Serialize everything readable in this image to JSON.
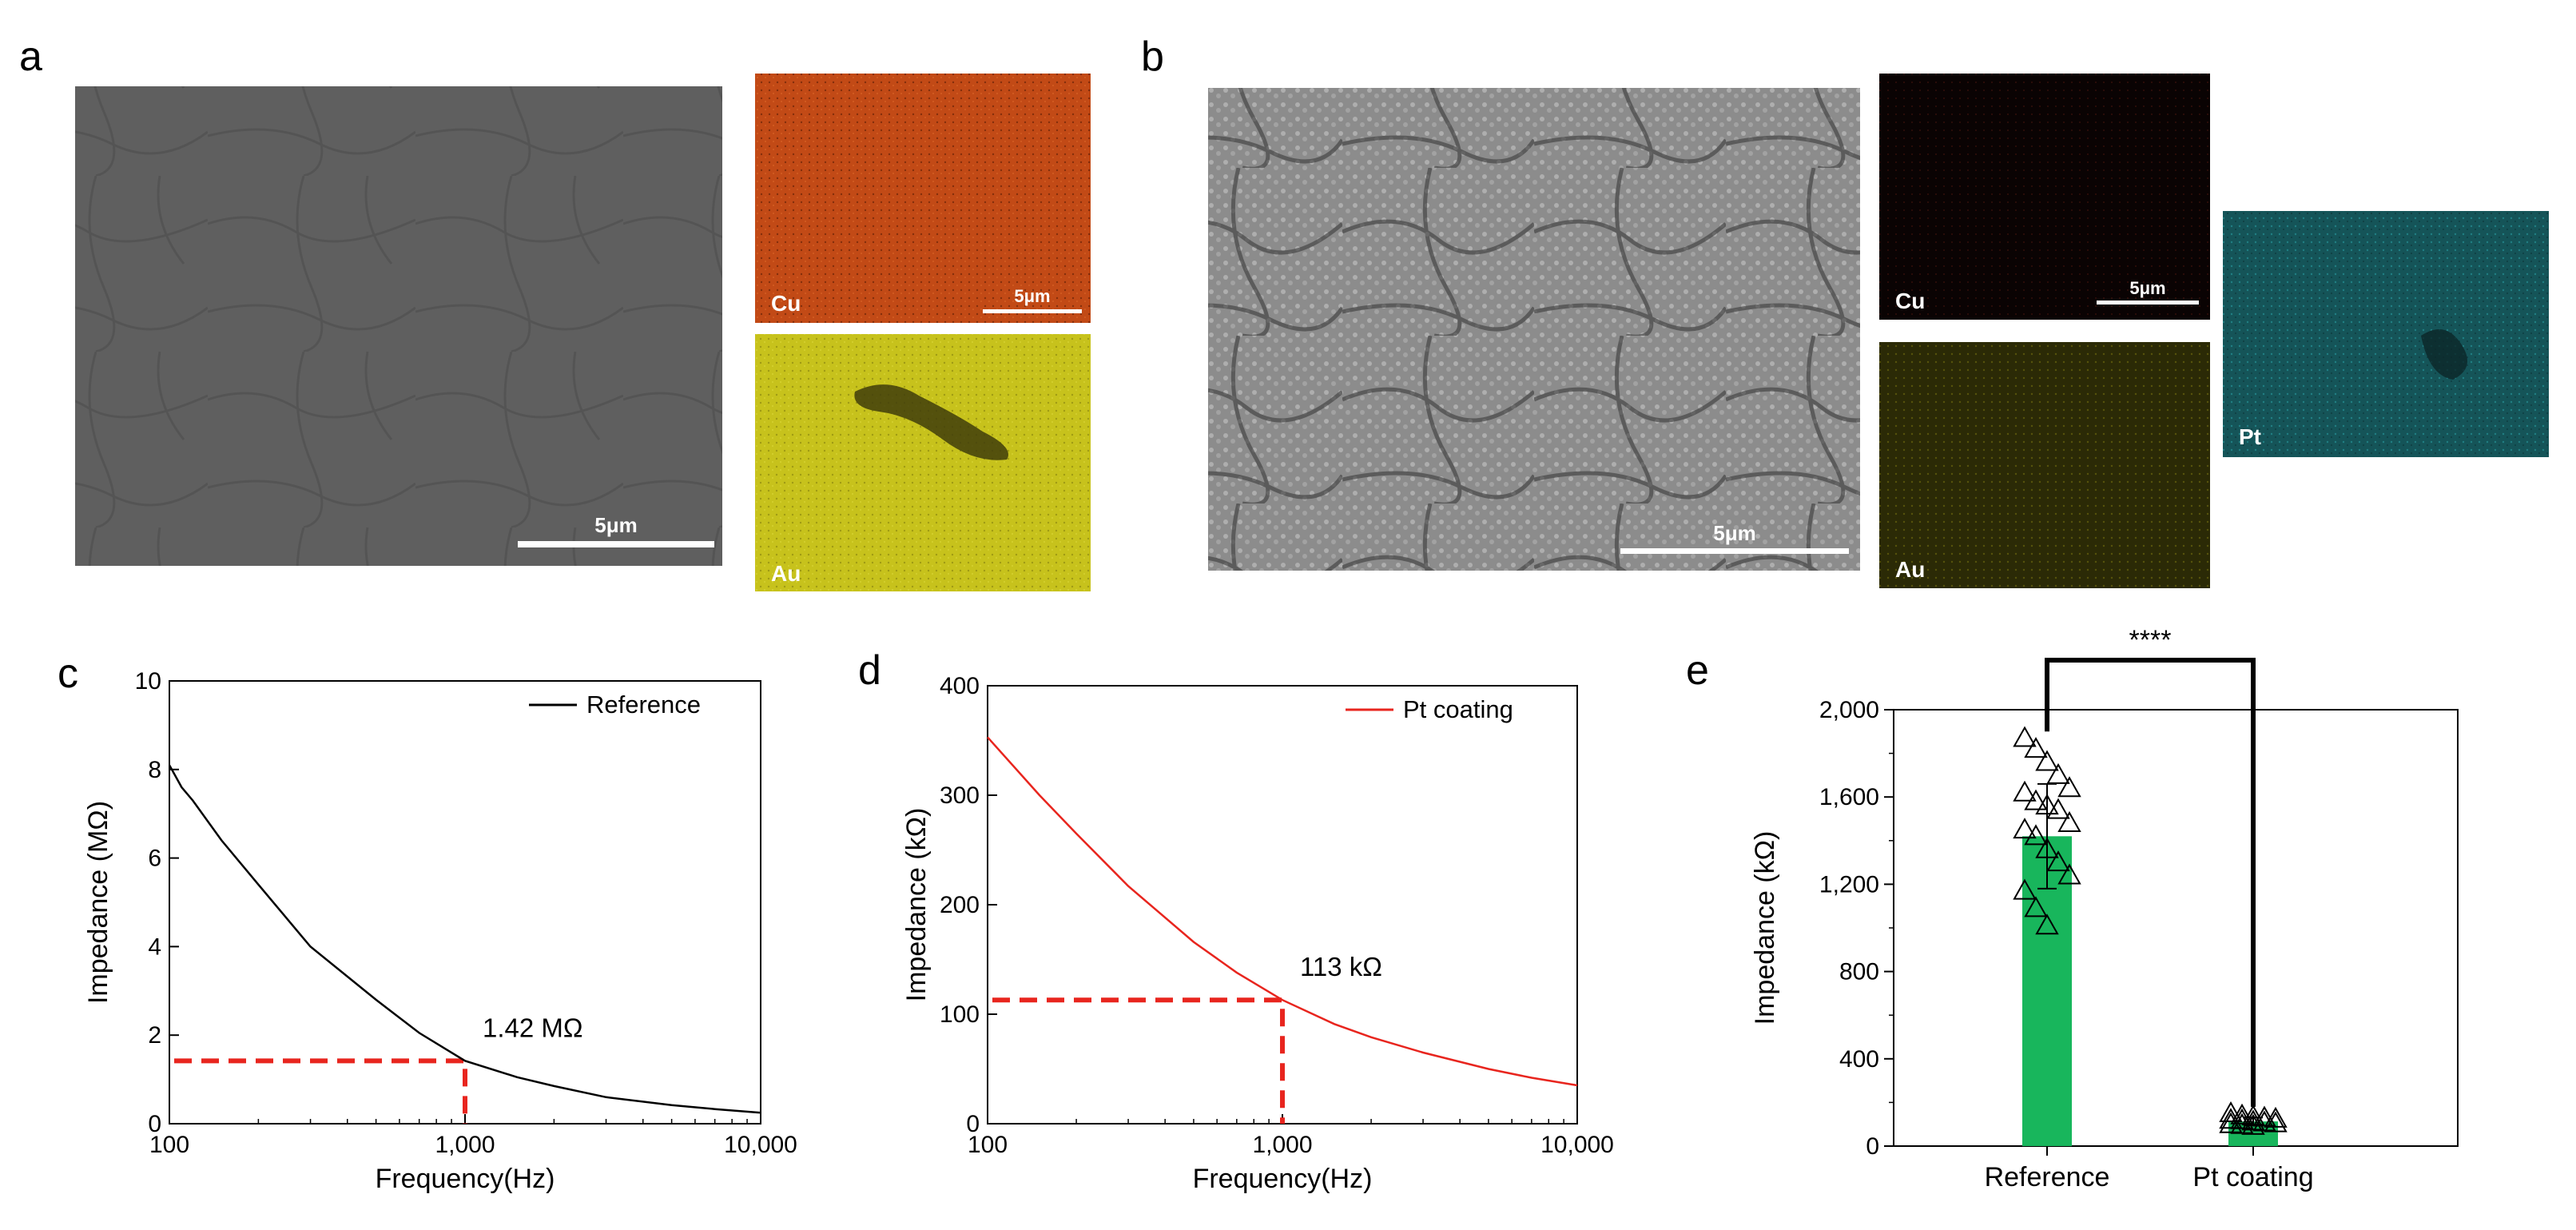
{
  "panels": {
    "a": "a",
    "b": "b",
    "c": "c",
    "d": "d",
    "e": "e"
  },
  "panel_a": {
    "sem_scalebar": "5μm",
    "cu_label": "Cu",
    "cu_scalebar": "5μm",
    "au_label": "Au",
    "colors": {
      "sem": "#5f5f5f",
      "cu": "#c24a16",
      "au": "#c7c21c"
    }
  },
  "panel_b": {
    "sem_scalebar": "5μm",
    "cu_label": "Cu",
    "cu_scalebar": "5μm",
    "au_label": "Au",
    "pt_label": "Pt",
    "colors": {
      "sem": "#8c8c8c",
      "cu": "#0a0303",
      "au": "#2b2a06",
      "pt": "#155458"
    }
  },
  "chart_data": [
    {
      "panel": "c",
      "type": "line",
      "xscale": "log",
      "xlim": [
        100,
        10000
      ],
      "ylim": [
        0,
        10
      ],
      "xticks": [
        100,
        1000,
        10000
      ],
      "xtick_labels": [
        "100",
        "1,000",
        "10,000"
      ],
      "yticks": [
        0,
        2,
        4,
        6,
        8,
        10
      ],
      "ytick_labels": [
        "0",
        "2",
        "4",
        "6",
        "8",
        "10"
      ],
      "xlabel": "Frequency(Hz)",
      "ylabel": "Impedance (MΩ)",
      "legend_position": "top-right",
      "series": [
        {
          "name": "Reference",
          "color": "#000000",
          "x": [
            100,
            110,
            120,
            150,
            200,
            300,
            500,
            700,
            1000,
            1500,
            2000,
            3000,
            5000,
            7000,
            10000
          ],
          "y": [
            8.1,
            7.6,
            7.3,
            6.4,
            5.4,
            4.0,
            2.8,
            2.05,
            1.42,
            1.05,
            0.85,
            0.6,
            0.42,
            0.33,
            0.25
          ]
        }
      ],
      "annotation": {
        "text": "1.42 MΩ",
        "x": 1000,
        "y": 1.42,
        "color": "#e8251e"
      }
    },
    {
      "panel": "d",
      "type": "line",
      "xscale": "log",
      "xlim": [
        100,
        10000
      ],
      "ylim": [
        0,
        400
      ],
      "xticks": [
        100,
        1000,
        10000
      ],
      "xtick_labels": [
        "100",
        "1,000",
        "10,000"
      ],
      "yticks": [
        0,
        100,
        200,
        300,
        400
      ],
      "ytick_labels": [
        "0",
        "100",
        "200",
        "300",
        "400"
      ],
      "xlabel": "Frequency(Hz)",
      "ylabel": "Impedance (kΩ)",
      "legend_position": "top-right",
      "series": [
        {
          "name": "Pt coating",
          "color": "#e8251e",
          "x": [
            100,
            150,
            200,
            300,
            500,
            700,
            1000,
            1500,
            2000,
            3000,
            5000,
            7000,
            10000
          ],
          "y": [
            353,
            300,
            265,
            217,
            166,
            138,
            113,
            91,
            79,
            65,
            50,
            42,
            35
          ]
        }
      ],
      "annotation": {
        "text": "113 kΩ",
        "x": 1000,
        "y": 113,
        "color": "#e8251e"
      }
    },
    {
      "panel": "e",
      "type": "bar",
      "categories": [
        "Reference",
        "Pt coating"
      ],
      "values": [
        1420,
        113
      ],
      "errors": [
        240,
        18
      ],
      "ylim": [
        0,
        2000
      ],
      "yticks": [
        0,
        400,
        800,
        1200,
        1600,
        2000
      ],
      "ytick_labels": [
        "0",
        "400",
        "800",
        "1,200",
        "1,600",
        "2,000"
      ],
      "ylabel": "Impedance (kΩ)",
      "bar_color": "#18b65c",
      "points": [
        [
          1870,
          1820,
          1760,
          1700,
          1640,
          1620,
          1580,
          1560,
          1540,
          1480,
          1450,
          1420,
          1360,
          1300,
          1240,
          1170,
          1090,
          1010
        ],
        [
          150,
          140,
          135,
          130,
          125,
          120,
          118,
          112,
          108,
          104,
          100,
          96,
          92
        ]
      ],
      "significance": "****"
    }
  ]
}
